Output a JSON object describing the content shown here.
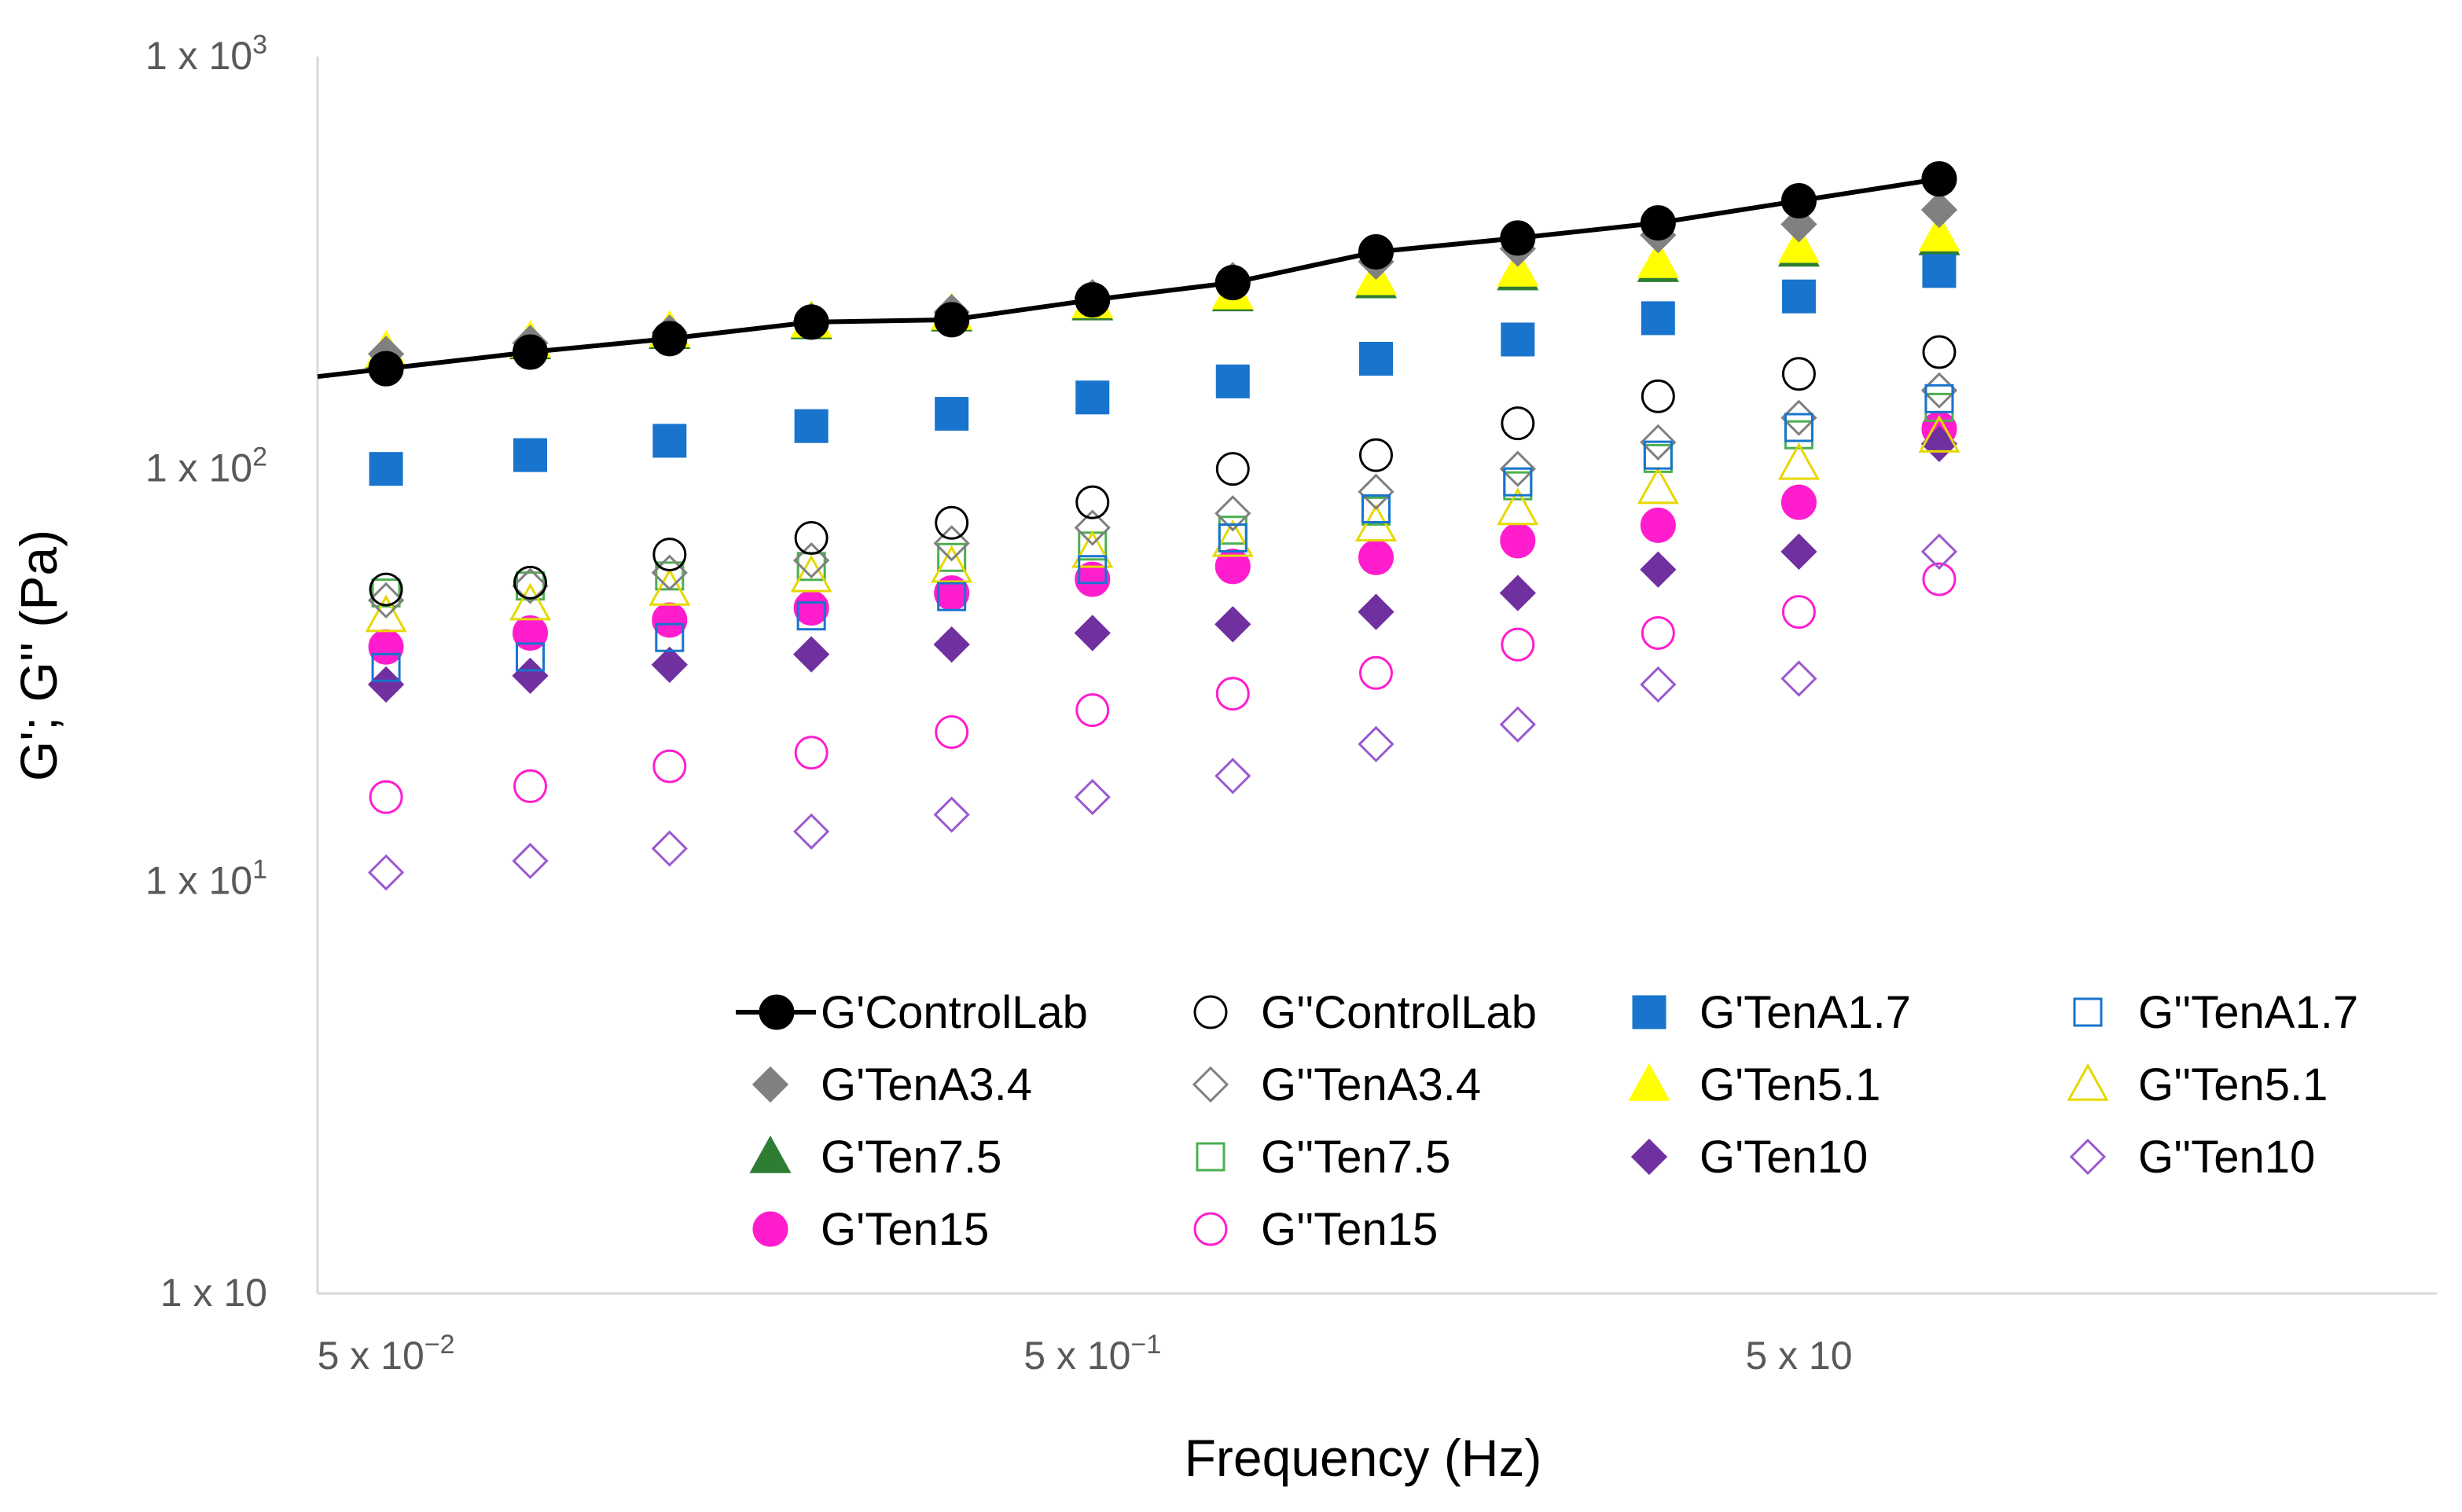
{
  "chart_data": {
    "type": "scatter",
    "title": "",
    "xlabel": "Frequency (Hz)",
    "ylabel": "G'; G'' (Pa)",
    "xscale": "log",
    "yscale": "log",
    "xlim": [
      0.04,
      40
    ],
    "ylim": [
      1,
      1000
    ],
    "grid": false,
    "legend_position": "bottom-right inside plot",
    "x_tick_labels": [
      {
        "value": 0.05,
        "base": "5 x 10",
        "exp": "−2"
      },
      {
        "value": 0.5,
        "base": "5 x 10",
        "exp": "−1"
      },
      {
        "value": 5,
        "base": "5 x 10",
        "exp": ""
      }
    ],
    "y_tick_labels": [
      {
        "value": 1000,
        "base": "1 x 10",
        "exp": "3"
      },
      {
        "value": 100,
        "base": "1 x 10",
        "exp": "2"
      },
      {
        "value": 10,
        "base": "1 x 10",
        "exp": "1"
      },
      {
        "value": 1,
        "base": "1 x 10",
        "exp": ""
      }
    ],
    "x": [
      0.05,
      0.08,
      0.126,
      0.2,
      0.316,
      0.5,
      0.79,
      1.26,
      2,
      3.16,
      5,
      7.9
    ],
    "series": [
      {
        "name": "G'ControlLab",
        "marker": "circle",
        "filled": true,
        "line": true,
        "color": "#000000",
        "values": [
          175,
          192,
          207,
          227,
          230,
          257,
          283,
          336,
          363,
          395,
          447,
          505
        ]
      },
      {
        "name": "G''ControlLab",
        "marker": "circle",
        "filled": false,
        "line": false,
        "color": "#000000",
        "values": [
          51,
          53,
          62,
          68,
          74,
          83,
          100,
          108,
          129,
          150,
          170,
          192
        ]
      },
      {
        "name": "G'TenA1.7",
        "marker": "square",
        "filled": true,
        "line": false,
        "color": "#1874CD",
        "values": [
          100,
          108,
          117,
          127,
          136,
          149,
          163,
          185,
          206,
          232,
          262,
          302
        ]
      },
      {
        "name": "G''TenA1.7",
        "marker": "square",
        "filled": false,
        "line": false,
        "color": "#1874CD",
        "values": [
          33,
          35,
          39,
          44,
          49,
          57,
          68,
          80,
          93,
          108,
          126,
          148
        ]
      },
      {
        "name": "G'TenA3.4",
        "marker": "diamond",
        "filled": true,
        "line": false,
        "color": "#808080",
        "values": [
          190,
          202,
          214,
          229,
          240,
          261,
          287,
          318,
          342,
          369,
          392,
          425
        ]
      },
      {
        "name": "G''TenA3.4",
        "marker": "diamond",
        "filled": false,
        "line": false,
        "color": "#808080",
        "values": [
          48,
          52,
          56,
          60,
          66,
          72,
          78,
          88,
          100,
          116,
          133,
          155
        ]
      },
      {
        "name": "G'Ten5.1",
        "marker": "triangle",
        "filled": true,
        "line": false,
        "color": "#FFFF00",
        "values": [
          193,
          204,
          216,
          228,
          238,
          254,
          267,
          289,
          303,
          318,
          346,
          369
        ]
      },
      {
        "name": "G''Ten5.1",
        "marker": "triangle",
        "filled": false,
        "line": false,
        "color": "#E6D800",
        "values": [
          44,
          47,
          51,
          55,
          58,
          63,
          67,
          73,
          80,
          90,
          103,
          120
        ]
      },
      {
        "name": "G'Ten7.5",
        "marker": "triangle",
        "filled": true,
        "line": false,
        "color": "#2E7D32",
        "values": [
          192,
          202,
          214,
          226,
          236,
          251,
          264,
          284,
          297,
          311,
          339,
          361
        ]
      },
      {
        "name": "G''Ten7.5",
        "marker": "square",
        "filled": false,
        "line": false,
        "color": "#4CAF50",
        "values": [
          50,
          52,
          55,
          58,
          61,
          65,
          71,
          79,
          91,
          106,
          121,
          141
        ]
      },
      {
        "name": "G'Ten10",
        "marker": "diamond",
        "filled": true,
        "line": false,
        "color": "#7030A0",
        "values": [
          30,
          31.5,
          33.5,
          35.5,
          37.5,
          40,
          42,
          45,
          50,
          57,
          63,
          115
        ]
      },
      {
        "name": "G''Ten10",
        "marker": "diamond",
        "filled": false,
        "line": false,
        "color": "#9B59D0",
        "values": [
          10.5,
          11.2,
          12,
          13.2,
          14.5,
          16,
          18,
          21.5,
          24,
          30,
          31,
          63
        ]
      },
      {
        "name": "G'Ten15",
        "marker": "circle",
        "filled": true,
        "line": false,
        "color": "#FF1DCE",
        "values": [
          37,
          40,
          43,
          46,
          50,
          54,
          58,
          61,
          67,
          73,
          83,
          125
        ]
      },
      {
        "name": "G''Ten15",
        "marker": "circle",
        "filled": false,
        "line": false,
        "color": "#FF1DCE",
        "values": [
          16,
          17,
          19,
          20.5,
          23,
          26,
          28.5,
          32,
          37.5,
          40,
          45,
          54
        ]
      }
    ]
  }
}
